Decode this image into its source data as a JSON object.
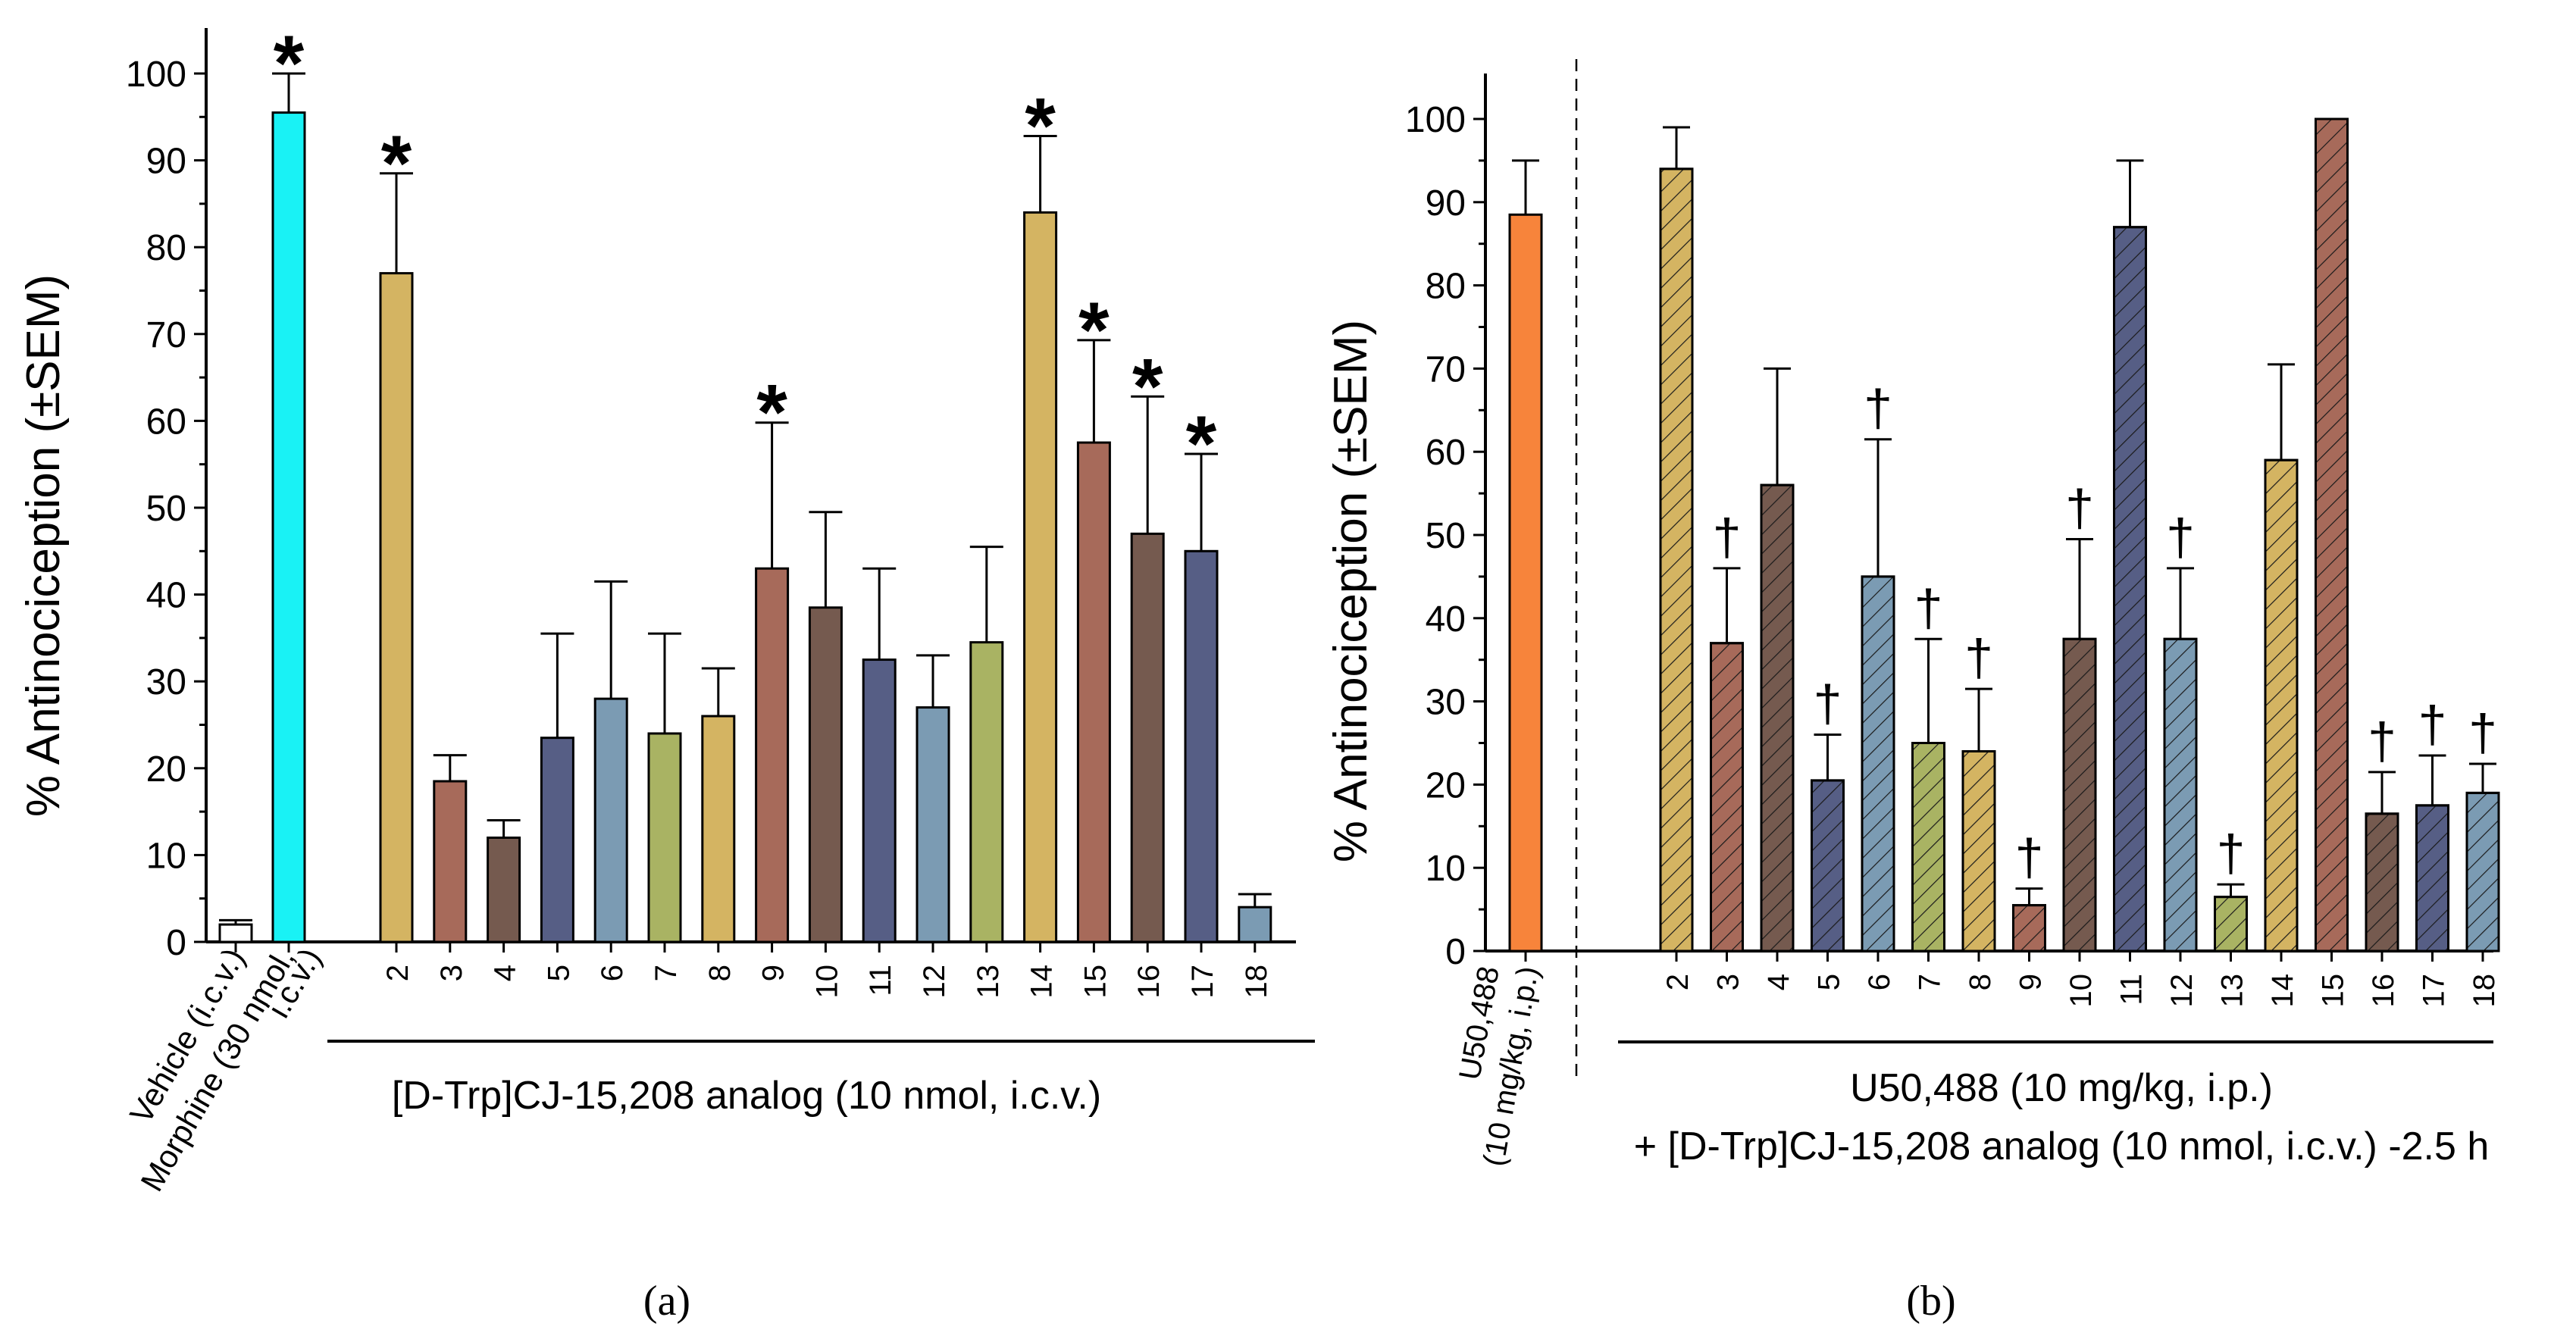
{
  "colors": {
    "cyan": "#19F2F5",
    "gold": "#D4B462",
    "rust": "#A76A5A",
    "brown": "#755A4F",
    "navy": "#565E85",
    "steel": "#7B9BB3",
    "olive": "#A9B363",
    "orange": "#F7843B",
    "white": "#FFFFFF"
  },
  "chart_data": [
    {
      "type": "bar",
      "panel": "(a)",
      "ylabel": "% Antinociception (±SEM)",
      "ylim": [
        0,
        100
      ],
      "yticks": [
        "0",
        "10",
        "20",
        "30",
        "40",
        "50",
        "60",
        "70",
        "80",
        "90",
        "100"
      ],
      "group_label": "[D-Trp]CJ-15,208 analog (10 nmol, i.c.v.)",
      "control_labels": [
        "Vehicle (i.c.v.)",
        "Morphine (30 nmol,",
        "i.c.v.)"
      ],
      "categories": [
        "Vehicle (i.c.v.)",
        "Morphine (30 nmol, i.c.v.)",
        "2",
        "3",
        "4",
        "5",
        "6",
        "7",
        "8",
        "9",
        "10",
        "11",
        "12",
        "13",
        "14",
        "15",
        "16",
        "17",
        "18"
      ],
      "values": [
        2.0,
        95.5,
        77.0,
        18.5,
        12.0,
        23.5,
        28.0,
        24.0,
        26.0,
        43.0,
        38.5,
        32.5,
        27.0,
        34.5,
        84.0,
        57.5,
        47.0,
        45.0,
        4.0
      ],
      "errors": [
        0.5,
        4.5,
        11.5,
        3.0,
        2.0,
        12.0,
        13.5,
        11.5,
        5.5,
        16.8,
        11.0,
        10.5,
        6.0,
        11.0,
        8.8,
        11.8,
        15.8,
        11.2,
        1.5
      ],
      "colors": [
        "white",
        "cyan",
        "gold",
        "rust",
        "brown",
        "navy",
        "steel",
        "olive",
        "gold",
        "rust",
        "brown",
        "navy",
        "steel",
        "olive",
        "gold",
        "rust",
        "brown",
        "navy",
        "steel"
      ],
      "markers": [
        "",
        "*",
        "*",
        "",
        "",
        "",
        "",
        "",
        "",
        "*",
        "",
        "",
        "",
        "",
        "*",
        "*",
        "*",
        "*",
        ""
      ]
    },
    {
      "type": "bar",
      "panel": "(b)",
      "ylabel": "% Antinociception (±SEM)",
      "ylim": [
        0,
        100
      ],
      "yticks": [
        "0",
        "10",
        "20",
        "30",
        "40",
        "50",
        "60",
        "70",
        "80",
        "90",
        "100"
      ],
      "group_label_line1": "U50,488 (10 mg/kg, i.p.)",
      "group_label_line2": "+ [D-Trp]CJ-15,208 analog (10 nmol, i.c.v.) -2.5 h",
      "control_labels": [
        "U50,488",
        "(10 mg/kg, i.p.)"
      ],
      "categories": [
        "U50,488 (10 mg/kg, i.p.)",
        "2",
        "3",
        "4",
        "5",
        "6",
        "7",
        "8",
        "9",
        "10",
        "11",
        "12",
        "13",
        "14",
        "15",
        "16",
        "17",
        "18"
      ],
      "values": [
        88.5,
        94.0,
        37.0,
        56.0,
        20.5,
        45.0,
        25.0,
        24.0,
        5.5,
        37.5,
        87.0,
        37.5,
        6.5,
        59.0,
        100.0,
        16.5,
        17.5,
        19.0
      ],
      "errors": [
        6.5,
        5.0,
        9.0,
        14.0,
        5.5,
        16.5,
        12.5,
        7.5,
        2.0,
        12.0,
        8.0,
        8.5,
        1.5,
        11.5,
        0.0,
        5.0,
        6.0,
        3.5
      ],
      "colors": [
        "orange",
        "gold",
        "rust",
        "brown",
        "navy",
        "steel",
        "olive",
        "gold",
        "rust",
        "brown",
        "navy",
        "steel",
        "olive",
        "gold",
        "rust",
        "brown",
        "navy",
        "steel"
      ],
      "hatched": [
        false,
        true,
        true,
        true,
        true,
        true,
        true,
        true,
        true,
        true,
        true,
        true,
        true,
        true,
        true,
        true,
        true,
        true
      ],
      "markers": [
        "",
        "",
        "†",
        "",
        "†",
        "†",
        "†",
        "†",
        "†",
        "†",
        "",
        "†",
        "†",
        "",
        "",
        "†",
        "†",
        "†"
      ]
    }
  ]
}
